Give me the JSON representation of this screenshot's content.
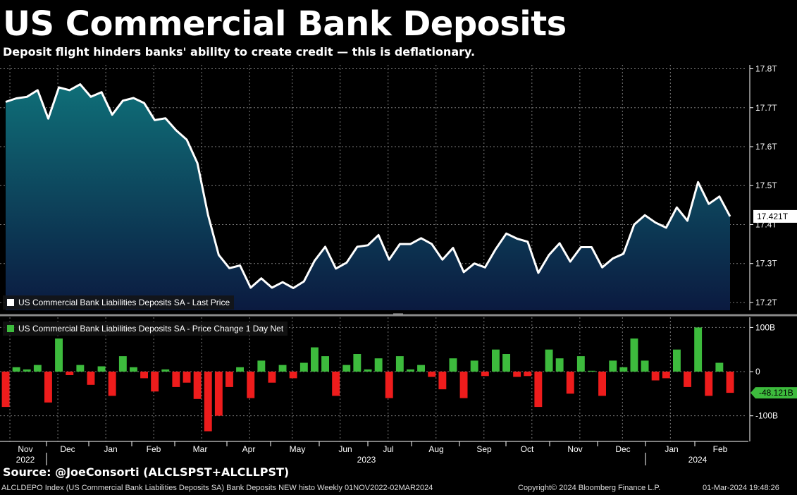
{
  "header": {
    "title": "US Commercial Bank Deposits",
    "subtitle": "Deposit flight hinders banks' ability to create credit — this is deflationary."
  },
  "source": "Source: @JoeConsorti (ALCLSPST+ALCLLPST)",
  "footer": {
    "description": "ALCLDEPO Index (US Commercial Bank Liabilities Deposits SA) Bank Deposits NEW histo  Weekly 01NOV2022-02MAR2024",
    "copyright": "Copyright© 2024 Bloomberg Finance L.P.",
    "timestamp": "01-Mar-2024 19:48:26"
  },
  "colors": {
    "background": "#000000",
    "line": "#ffffff",
    "fill_top": "#0f6f78",
    "fill_bottom": "#0b1a40",
    "positive_bar": "#3dbb3d",
    "negative_bar": "#ee1c1c"
  },
  "chart_data": [
    {
      "type": "area",
      "legend": "US Commercial Bank Liabilities Deposits SA - Last Price",
      "last_value_label": "17.421T",
      "y_tick_labels": [
        "17.8T",
        "17.7T",
        "17.6T",
        "17.5T",
        "17.4T",
        "17.3T",
        "17.2T"
      ],
      "yticks": [
        17.8,
        17.7,
        17.6,
        17.5,
        17.4,
        17.3,
        17.2
      ],
      "ylim": [
        17.18,
        17.81
      ],
      "grid": true,
      "values": [
        17.715,
        17.724,
        17.728,
        17.745,
        17.672,
        17.752,
        17.745,
        17.76,
        17.728,
        17.74,
        17.682,
        17.718,
        17.725,
        17.712,
        17.668,
        17.673,
        17.642,
        17.618,
        17.558,
        17.425,
        17.322,
        17.288,
        17.295,
        17.238,
        17.262,
        17.238,
        17.252,
        17.237,
        17.254,
        17.307,
        17.343,
        17.287,
        17.302,
        17.343,
        17.347,
        17.373,
        17.31,
        17.35,
        17.35,
        17.365,
        17.35,
        17.31,
        17.34,
        17.278,
        17.3,
        17.29,
        17.337,
        17.377,
        17.364,
        17.356,
        17.276,
        17.322,
        17.352,
        17.305,
        17.342,
        17.342,
        17.29,
        17.313,
        17.325,
        17.4,
        17.424,
        17.405,
        17.392,
        17.444,
        17.41,
        17.509,
        17.453,
        17.472,
        17.421
      ]
    },
    {
      "type": "bar",
      "legend": "US Commercial Bank Liabilities Deposits SA - Price Change 1 Day Net",
      "last_value_label": "-48.121B",
      "y_tick_labels": [
        "100B",
        "0",
        "-100B"
      ],
      "yticks": [
        100,
        0,
        -100
      ],
      "ylim": [
        -158,
        123
      ],
      "grid": true,
      "values": [
        -80,
        10,
        5,
        15,
        -70,
        75,
        -8,
        15,
        -30,
        12,
        -55,
        35,
        10,
        -15,
        -45,
        5,
        -35,
        -25,
        -62,
        -135,
        -100,
        -35,
        10,
        -60,
        25,
        -25,
        15,
        -15,
        20,
        55,
        35,
        -55,
        15,
        40,
        5,
        30,
        -60,
        35,
        5,
        15,
        -12,
        -40,
        30,
        -60,
        25,
        -10,
        50,
        40,
        -12,
        -10,
        -80,
        50,
        30,
        -50,
        35,
        2,
        -55,
        25,
        10,
        75,
        25,
        -20,
        -15,
        50,
        -35,
        100,
        -55,
        20,
        -48.121
      ]
    }
  ],
  "x_axis": {
    "months": [
      "Nov",
      "Dec",
      "Jan",
      "Feb",
      "Mar",
      "Apr",
      "May",
      "Jun",
      "Jul",
      "Aug",
      "Sep",
      "Oct",
      "Nov",
      "Dec",
      "Jan",
      "Feb"
    ],
    "years": [
      {
        "label": "2022"
      },
      {
        "label": "2023"
      },
      {
        "label": "2024"
      }
    ]
  }
}
